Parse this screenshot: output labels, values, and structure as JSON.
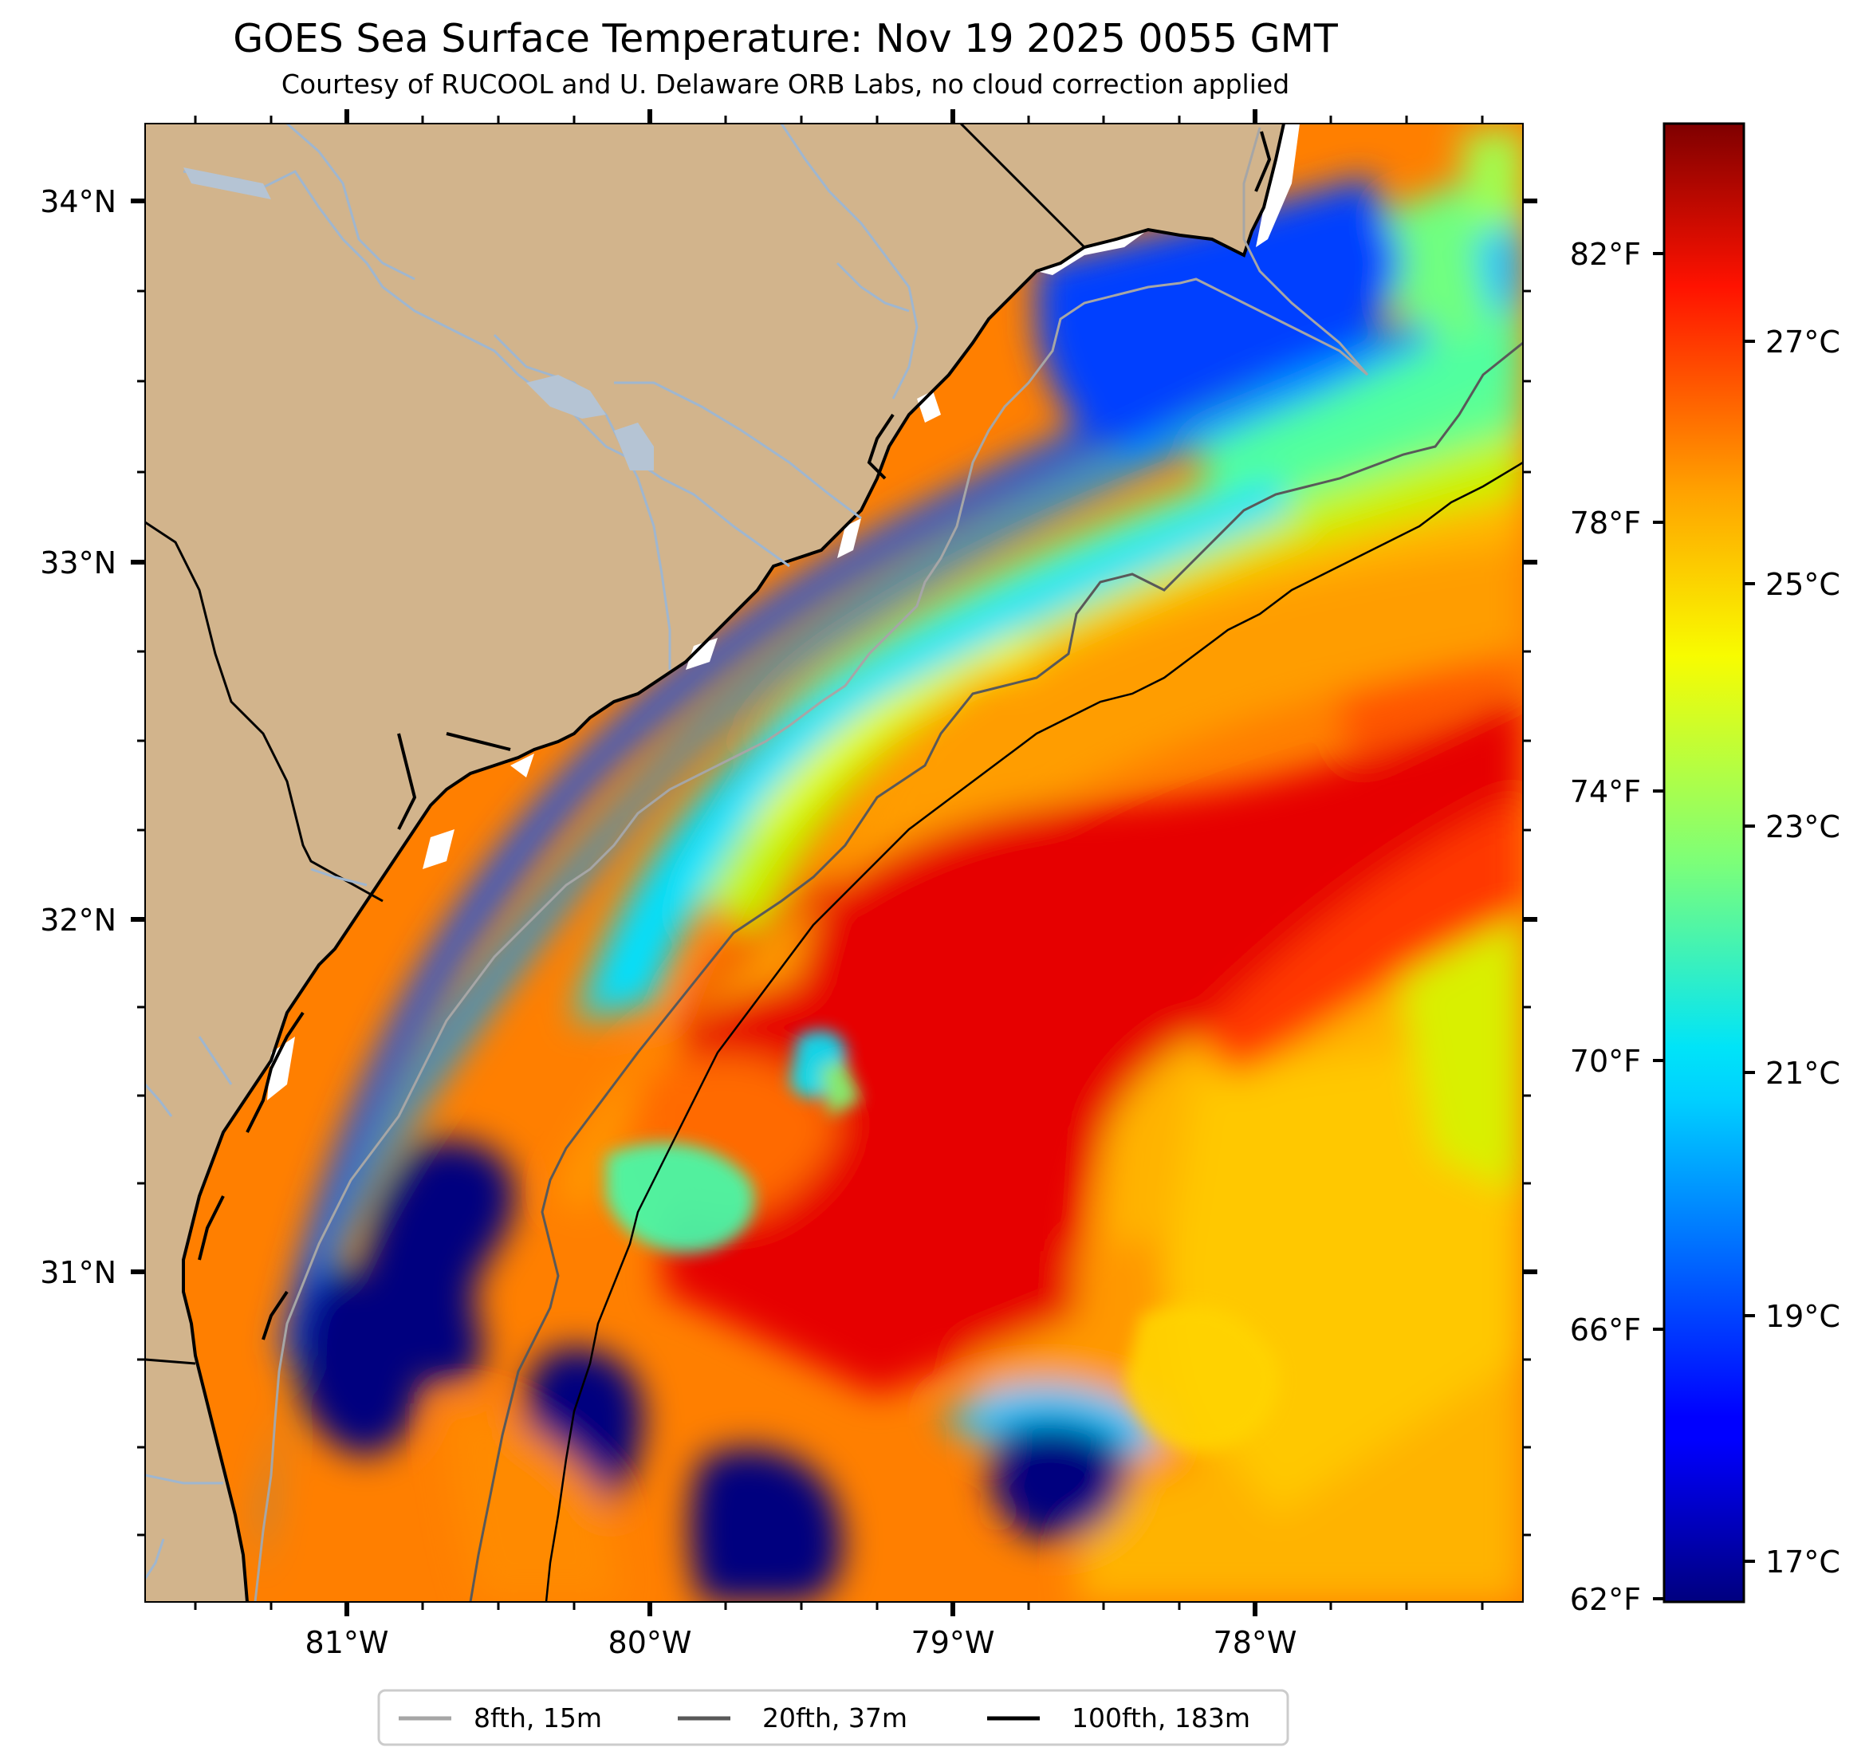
{
  "title": "GOES Sea Surface Temperature: Nov 19 2025 0055 GMT",
  "subtitle": "Courtesy of RUCOOL and U. Delaware ORB Labs, no cloud correction applied",
  "colors": {
    "land": "#d2b48c",
    "rivers": "#9fb6cf",
    "coastline": "#000000",
    "isobath_8fth": "#a6a6a6",
    "isobath_20fth": "#595959",
    "isobath_100fth": "#000000"
  },
  "map": {
    "lat_labels": [
      "34°N",
      "33°N",
      "32°N",
      "31°N"
    ],
    "lon_labels": [
      "81°W",
      "80°W",
      "79°W",
      "78°W"
    ]
  },
  "colorbar": {
    "unit_celsius": "°C",
    "unit_fahrenheit": "°F",
    "celsius_labels": [
      "27°C",
      "25°C",
      "23°C",
      "21°C",
      "19°C",
      "17°C"
    ],
    "fahrenheit_labels": [
      "82°F",
      "78°F",
      "74°F",
      "70°F",
      "66°F",
      "62°F"
    ],
    "celsius_min": 16.67,
    "celsius_max": 28.89
  },
  "legend": {
    "items": [
      {
        "label": "8fth, 15m"
      },
      {
        "label": "20fth, 37m"
      },
      {
        "label": "100fth, 183m"
      }
    ]
  }
}
